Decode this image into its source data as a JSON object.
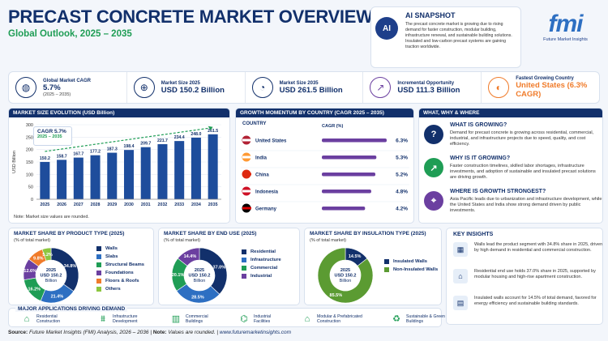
{
  "header": {
    "title": "PRECAST CONCRETE MARKET OVERVIEW",
    "subtitle": "Global Outlook, 2025 – 2035"
  },
  "snapshot": {
    "icon_text": "AI",
    "title": "AI SNAPSHOT",
    "text": "The precast concrete market is growing due to rising demand for faster construction, modular building, infrastructure renewal, and sustainable building solutions. Insulated and low-carbon precast systems are gaining traction worldwide."
  },
  "logo": {
    "mark": "fmi",
    "name": "Future Market Insights"
  },
  "stats": [
    {
      "label": "Global Market CAGR",
      "value": "5.7%",
      "sub": "(2025 – 2035)",
      "icon": "globe-icon",
      "glyph": "◍"
    },
    {
      "label": "Market Size 2025",
      "value": "USD 150.2 Billion",
      "sub": "",
      "icon": "globe-icon",
      "glyph": "⊕"
    },
    {
      "label": "Market Size 2035",
      "value": "USD 261.5 Billion",
      "sub": "",
      "icon": "pie-icon",
      "glyph": "◔"
    },
    {
      "label": "Incremental Opportunity",
      "value": "USD 111.3 Billion",
      "sub": "",
      "icon": "chart-up-icon",
      "glyph": "↗"
    },
    {
      "label": "Fastest Growing Country",
      "value": "United States (6.3% CAGR)",
      "sub": "",
      "icon": "gauge-icon",
      "glyph": "◐"
    }
  ],
  "bar_section": {
    "title": "MARKET SIZE EVOLUTION (USD Billion)",
    "cagr_label": "CAGR 5.7%",
    "cagr_range": "2025 – 2035",
    "note": "Note: Market size values are rounded.",
    "ylabel": "USD Billion"
  },
  "country_section": {
    "title": "GROWTH MOMENTUM BY COUNTRY (CAGR 2025 – 2035)",
    "col_country": "COUNTRY",
    "col_cagr": "CAGR (%)"
  },
  "www": {
    "title": "WHAT, WHY & WHERE",
    "items": [
      {
        "heading": "WHAT IS GROWING?",
        "text": "Demand for precast concrete is growing across residential, commercial, industrial, and infrastructure projects due to speed, quality, and cost efficiency.",
        "glyph": "?",
        "color": "#12306b"
      },
      {
        "heading": "WHY IS IT GROWING?",
        "text": "Faster construction timelines, skilled labor shortages, infrastructure investments, and adoption of sustainable and insulated precast solutions are driving growth.",
        "glyph": "↗",
        "color": "#1f9d55"
      },
      {
        "heading": "WHERE IS GROWTH STRONGEST?",
        "text": "Asia Pacific leads due to urbanization and infrastructure development, while the United States and India show strong demand driven by public investments.",
        "glyph": "⌖",
        "color": "#6b3fa0"
      }
    ]
  },
  "donut_product": {
    "title": "MARKET SHARE BY PRODUCT TYPE (2025)",
    "sub": "(% of total market)",
    "center1": "2025",
    "center2": "USD 150.2",
    "center3": "Billion"
  },
  "donut_enduse": {
    "title": "MARKET SHARE BY END USE (2025)",
    "sub": "(% of total market)",
    "center1": "2025",
    "center2": "USD 150.2",
    "center3": "Billion"
  },
  "donut_insul": {
    "title": "MARKET SHARE BY INSULATION TYPE (2025)",
    "sub": "(% of total market)",
    "center1": "2025",
    "center2": "USD 150.2",
    "center3": "Billion"
  },
  "key_insights": {
    "title": "KEY INSIGHTS",
    "items": [
      {
        "text": "Walls lead the product segment with 34.8% share in 2025, driven by high demand in residential and commercial construction.",
        "glyph": "▦"
      },
      {
        "text": "Residential end use holds 37.0% share in 2025, supported by modular housing and high-rise apartment construction.",
        "glyph": "⌂"
      },
      {
        "text": "Insulated walls account for 14.5% of total demand, favored for energy efficiency and sustainable building standards.",
        "glyph": "▤"
      }
    ]
  },
  "applications": {
    "title": "MAJOR APPLICATIONS DRIVING DEMAND",
    "items": [
      {
        "label": "Residential Construction",
        "glyph": "⌂"
      },
      {
        "label": "Infrastructure Development",
        "glyph": "⩩"
      },
      {
        "label": "Commercial Buildings",
        "glyph": "▥"
      },
      {
        "label": "Industrial Facilities",
        "glyph": "⌬"
      },
      {
        "label": "Modular & Prefabricated Construction",
        "glyph": "⌂"
      },
      {
        "label": "Sustainable & Green Buildings",
        "glyph": "♻"
      }
    ]
  },
  "footer": {
    "source_label": "Source:",
    "source": "Future Market Insights (FMI) Analysis, 2026 – 2036",
    "note_label": "Note:",
    "note": "Values are rounded.",
    "url": "www.futuremarketinsights.com"
  },
  "chart_data": [
    {
      "type": "bar",
      "title": "MARKET SIZE EVOLUTION (USD Billion)",
      "ylabel": "USD Billion",
      "categories": [
        "2025",
        "2026",
        "2027",
        "2028",
        "2029",
        "2030",
        "2031",
        "2032",
        "2033",
        "2034",
        "2035"
      ],
      "values": [
        150.2,
        158.7,
        167.7,
        177.2,
        187.3,
        198.4,
        209.7,
        221.7,
        234.4,
        248.0,
        261.5
      ],
      "ylim": [
        0,
        300
      ],
      "color": "#1e4d9c"
    },
    {
      "type": "bar",
      "title": "GROWTH MOMENTUM BY COUNTRY (CAGR 2025 – 2035)",
      "categories": [
        "United States",
        "India",
        "China",
        "Indonesia",
        "Germany"
      ],
      "values": [
        6.3,
        5.3,
        5.2,
        4.8,
        4.2
      ],
      "unit": "%",
      "color": "#6b3fa0"
    },
    {
      "type": "pie",
      "title": "MARKET SHARE BY PRODUCT TYPE (2025)",
      "labels": [
        "Walls",
        "Slabs",
        "Structural Beams",
        "Foundations",
        "Floors & Roofs",
        "Others"
      ],
      "values": [
        34.8,
        21.4,
        16.2,
        12.6,
        9.8,
        5.2
      ],
      "colors": [
        "#12306b",
        "#2d6fc2",
        "#1f9d55",
        "#6b3fa0",
        "#f07b2a",
        "#8cc63f"
      ]
    },
    {
      "type": "pie",
      "title": "MARKET SHARE BY END USE (2025)",
      "labels": [
        "Residential",
        "Infrastructure",
        "Commercial",
        "Industrial"
      ],
      "values": [
        37.0,
        28.5,
        20.1,
        14.4
      ],
      "colors": [
        "#12306b",
        "#2d6fc2",
        "#1f9d55",
        "#6b3fa0"
      ]
    },
    {
      "type": "pie",
      "title": "MARKET SHARE BY INSULATION TYPE (2025)",
      "labels": [
        "Insulated Walls",
        "Non-Insulated Walls"
      ],
      "values": [
        14.5,
        85.5
      ],
      "colors": [
        "#12306b",
        "#5b9b32"
      ]
    }
  ]
}
